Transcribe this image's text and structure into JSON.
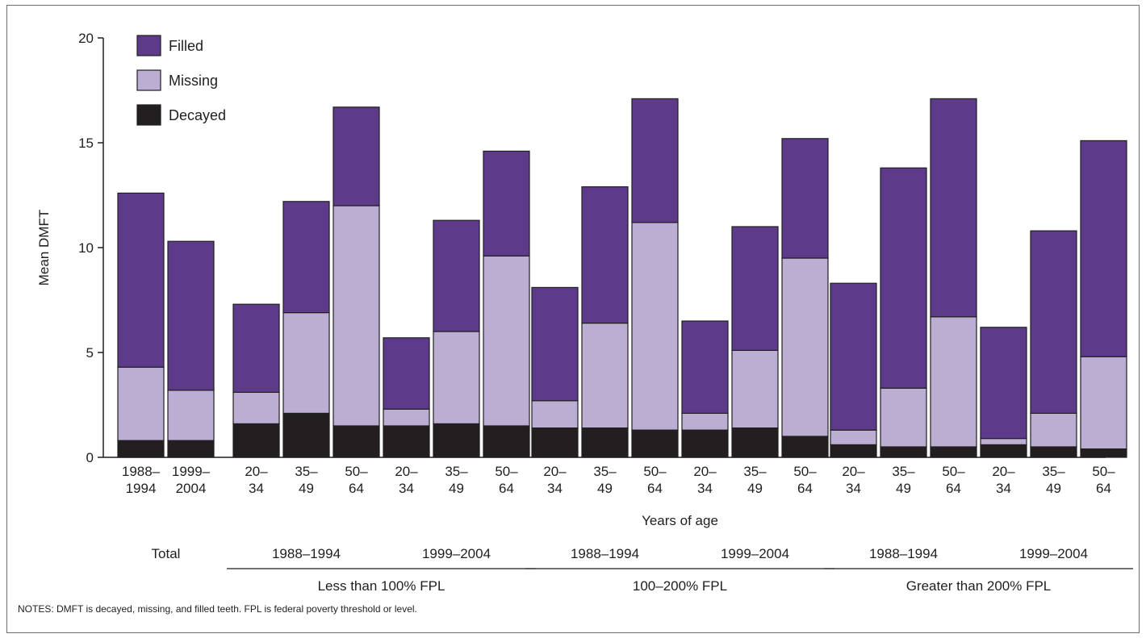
{
  "chart_data": {
    "type": "bar",
    "stacked": true,
    "ylabel": "Mean DMFT",
    "xlabel": "Years of age",
    "ylim": [
      0,
      20
    ],
    "yticks": [
      0,
      5,
      10,
      15,
      20
    ],
    "legend": {
      "placement": "top-left",
      "order": [
        "Filled",
        "Missing",
        "Decayed"
      ]
    },
    "colors": {
      "Decayed": "#231f20",
      "Missing": "#bcaed3",
      "Filled": "#5e3b8a"
    },
    "categories": [
      [
        "1988–",
        "1994"
      ],
      [
        "1999–",
        "2004"
      ],
      [
        "20–",
        "34"
      ],
      [
        "35–",
        "49"
      ],
      [
        "50–",
        "64"
      ],
      [
        "20–",
        "34"
      ],
      [
        "35–",
        "49"
      ],
      [
        "50–",
        "64"
      ],
      [
        "20–",
        "34"
      ],
      [
        "35–",
        "49"
      ],
      [
        "50–",
        "64"
      ],
      [
        "20–",
        "34"
      ],
      [
        "35–",
        "49"
      ],
      [
        "50–",
        "64"
      ],
      [
        "20–",
        "34"
      ],
      [
        "35–",
        "49"
      ],
      [
        "50–",
        "64"
      ],
      [
        "20–",
        "34"
      ],
      [
        "35–",
        "49"
      ],
      [
        "50–",
        "64"
      ]
    ],
    "series": [
      {
        "name": "Decayed",
        "values": [
          0.8,
          0.8,
          1.6,
          2.1,
          1.5,
          1.5,
          1.6,
          1.5,
          1.4,
          1.4,
          1.3,
          1.3,
          1.4,
          1.0,
          0.6,
          0.5,
          0.5,
          0.6,
          0.5,
          0.4
        ]
      },
      {
        "name": "Missing",
        "values": [
          3.5,
          2.4,
          1.5,
          4.8,
          10.5,
          0.8,
          4.4,
          8.1,
          1.3,
          5.0,
          9.9,
          0.8,
          3.7,
          8.5,
          0.7,
          2.8,
          6.2,
          0.3,
          1.6,
          4.4
        ]
      },
      {
        "name": "Filled",
        "values": [
          8.3,
          7.1,
          4.2,
          5.3,
          4.7,
          3.4,
          5.3,
          5.0,
          5.4,
          6.5,
          5.9,
          4.4,
          5.9,
          5.7,
          7.0,
          10.5,
          10.4,
          5.3,
          8.7,
          10.3
        ]
      }
    ],
    "group_labels": [
      {
        "label": "Total",
        "start": 0,
        "end": 1,
        "underline": false
      },
      {
        "label": "1988–1994",
        "start": 2,
        "end": 4,
        "underline": false
      },
      {
        "label": "1999–2004",
        "start": 5,
        "end": 7,
        "underline": false
      },
      {
        "label": "1988–1994",
        "start": 8,
        "end": 10,
        "underline": false
      },
      {
        "label": "1999–2004",
        "start": 11,
        "end": 13,
        "underline": false
      },
      {
        "label": "1988–1994",
        "start": 14,
        "end": 16,
        "underline": false
      },
      {
        "label": "1999–2004",
        "start": 17,
        "end": 19,
        "underline": false
      }
    ],
    "super_groups": [
      {
        "label": "Less than 100% FPL",
        "start": 2,
        "end": 7
      },
      {
        "label": "100–200% FPL",
        "start": 8,
        "end": 13
      },
      {
        "label": "Greater than 200% FPL",
        "start": 14,
        "end": 19
      }
    ]
  },
  "notes": "NOTES: DMFT is decayed, missing, and filled teeth.  FPL is federal poverty threshold or level."
}
